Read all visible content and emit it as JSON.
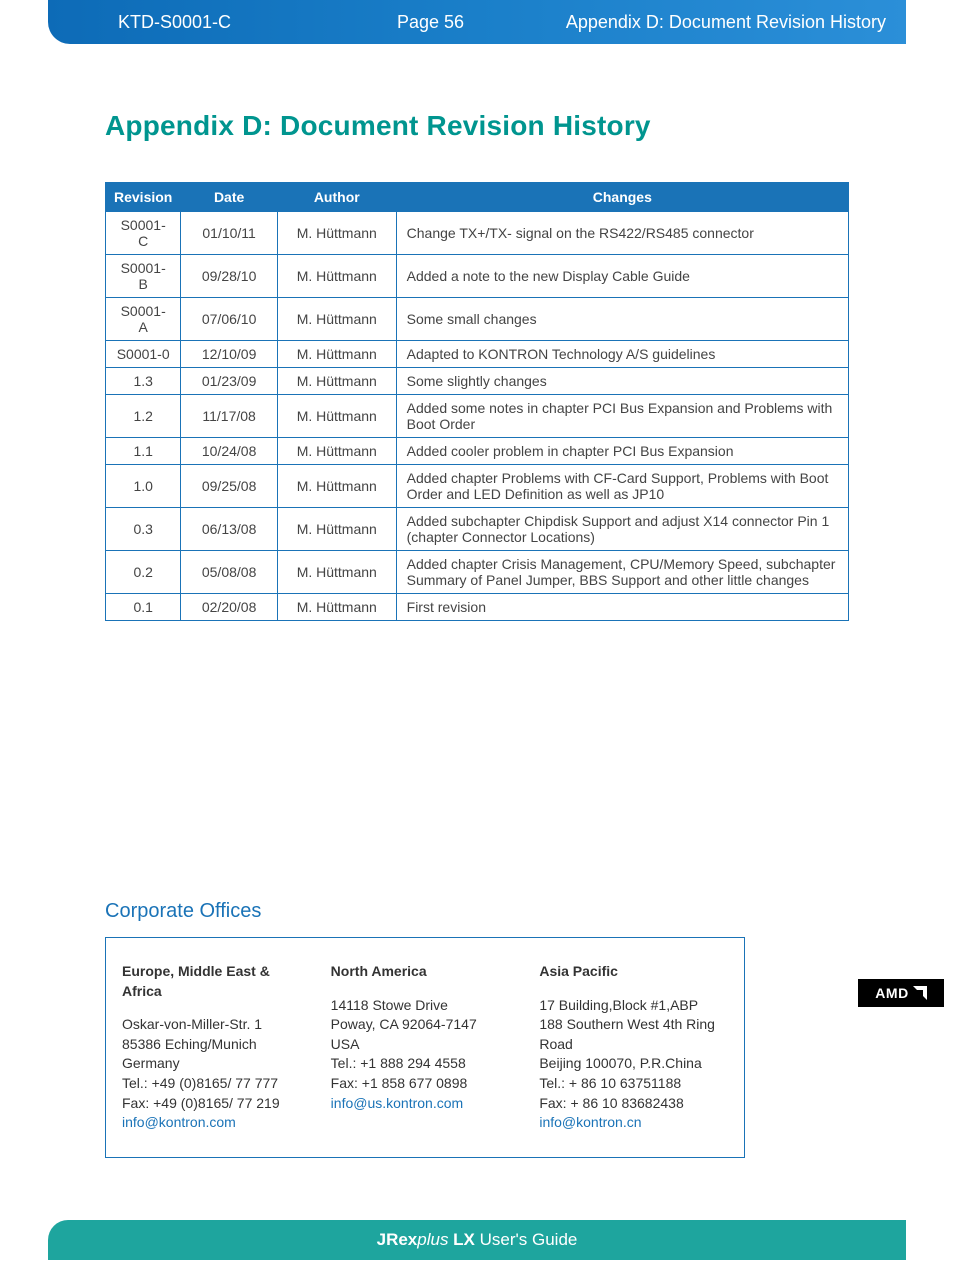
{
  "header": {
    "doc_id": "KTD-S0001-C",
    "page_label": "Page 56",
    "section": "Appendix D: Document Revision History"
  },
  "title": "Appendix D: Document Revision History",
  "table": {
    "columns": [
      "Revision",
      "Date",
      "Author",
      "Changes"
    ],
    "colWidths": [
      "10%",
      "13%",
      "16%",
      "61%"
    ],
    "rows": [
      [
        "S0001-C",
        "01/10/11",
        "M. Hüttmann",
        "Change TX+/TX- signal on the RS422/RS485 connector"
      ],
      [
        "S0001-B",
        "09/28/10",
        "M. Hüttmann",
        "Added a note to the new Display Cable Guide"
      ],
      [
        "S0001-A",
        "07/06/10",
        "M. Hüttmann",
        "Some small changes"
      ],
      [
        "S0001-0",
        "12/10/09",
        "M. Hüttmann",
        "Adapted to KONTRON Technology A/S guidelines"
      ],
      [
        "1.3",
        "01/23/09",
        "M. Hüttmann",
        "Some slightly changes"
      ],
      [
        "1.2",
        "11/17/08",
        "M. Hüttmann",
        "Added some notes in chapter PCI Bus Expansion and Problems with Boot Order"
      ],
      [
        "1.1",
        "10/24/08",
        "M. Hüttmann",
        "Added cooler problem in chapter PCI Bus Expansion"
      ],
      [
        "1.0",
        "09/25/08",
        "M. Hüttmann",
        "Added chapter Problems with CF-Card Support, Problems with Boot Order and LED Definition as well as JP10"
      ],
      [
        "0.3",
        "06/13/08",
        "M. Hüttmann",
        "Added subchapter Chipdisk Support and adjust X14 connector Pin 1 (chapter Connector Locations)"
      ],
      [
        "0.2",
        "05/08/08",
        "M. Hüttmann",
        "Added chapter Crisis Management, CPU/Memory Speed, subchapter Summary of Panel Jumper, BBS Support and other little changes"
      ],
      [
        "0.1",
        "02/20/08",
        "M. Hüttmann",
        "First revision"
      ]
    ]
  },
  "offices": {
    "heading": "Corporate Offices",
    "regions": [
      {
        "name": "Europe, Middle East & Africa",
        "lines": [
          "Oskar-von-Miller-Str. 1",
          "85386 Eching/Munich",
          "Germany",
          "Tel.: +49 (0)8165/ 77 777",
          "Fax: +49 (0)8165/ 77 219"
        ],
        "email": "info@kontron.com"
      },
      {
        "name": "North America",
        "lines": [
          "14118 Stowe Drive",
          "Poway, CA 92064-7147",
          "USA",
          "Tel.: +1 888 294 4558",
          "Fax: +1 858 677 0898"
        ],
        "email": "info@us.kontron.com"
      },
      {
        "name": "Asia Pacific",
        "lines": [
          "17 Building,Block #1,ABP",
          "188 Southern West 4th Ring Road",
          "Beijing 100070, P.R.China",
          "Tel.: + 86 10 63751188",
          "Fax: + 86 10 83682438"
        ],
        "email": "info@kontron.cn"
      }
    ]
  },
  "logo": {
    "text": "AMD"
  },
  "footer": {
    "brand_bold": "JRex",
    "brand_italic": "plus",
    "brand_suffix": " LX",
    "rest": " User's Guide"
  },
  "colors": {
    "teal": "#00958f",
    "blue": "#1a73b7",
    "footer_teal": "#1ea59e"
  }
}
